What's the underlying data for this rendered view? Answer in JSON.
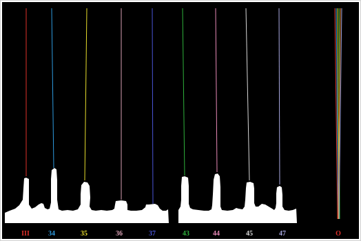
{
  "figure": {
    "background_color": "#000000",
    "border_color": "#cfcfcf",
    "silhouette_color": "#ffffff"
  },
  "probes": [
    {
      "label": "III",
      "color": "#e0302a"
    },
    {
      "label": "34",
      "color": "#2e9be0"
    },
    {
      "label": "35",
      "color": "#e8de2c"
    },
    {
      "label": "36",
      "color": "#d8a0b4"
    },
    {
      "label": "37",
      "color": "#4a55d8"
    },
    {
      "label": "43",
      "color": "#2fb23c"
    },
    {
      "label": "44",
      "color": "#e88ab8"
    },
    {
      "label": "45",
      "color": "#d8d8d8"
    },
    {
      "label": "47",
      "color": "#a8a8e0"
    }
  ],
  "overlay": {
    "label": "O",
    "label_color": "#e0302a",
    "line_colors": [
      "#e0302a",
      "#2e9be0",
      "#e8de2c",
      "#2fb23c",
      "#e88a2c",
      "#a8a8e0"
    ]
  }
}
